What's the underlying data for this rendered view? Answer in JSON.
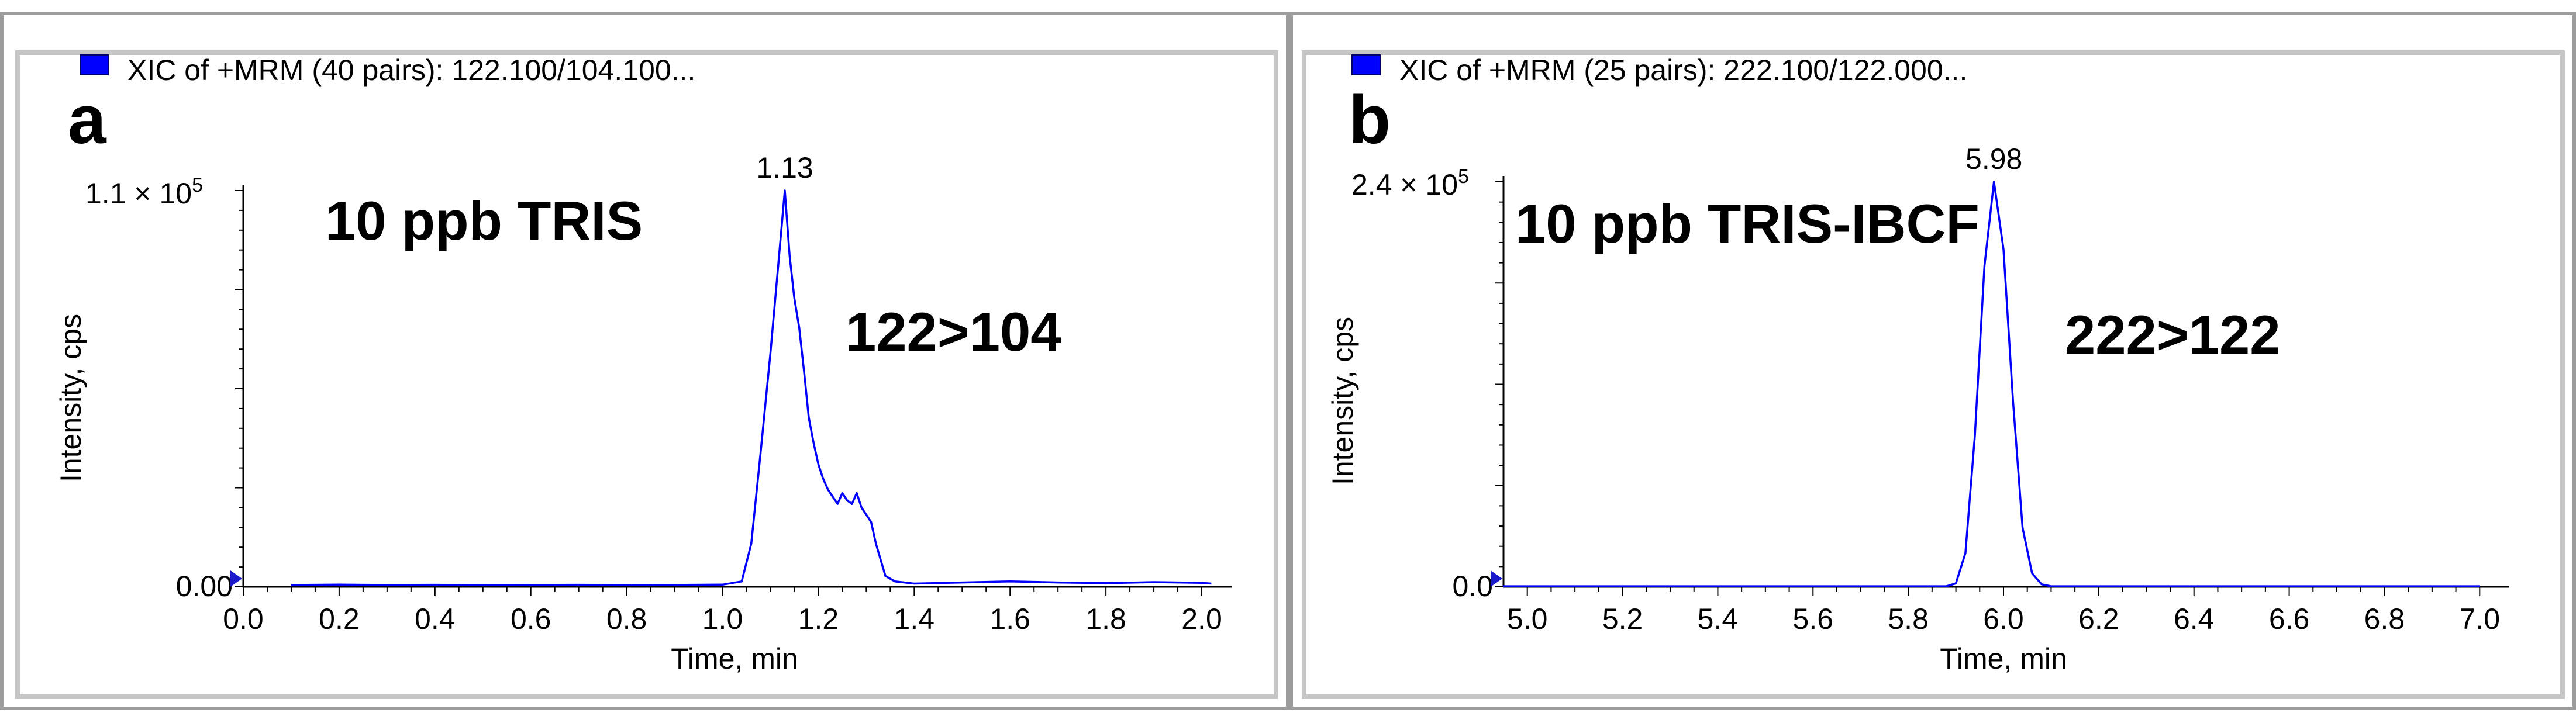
{
  "chart_data": [
    {
      "type": "line",
      "panel_letter": "a",
      "legend": "XIC of +MRM (40 pairs): 122.100/104.100...",
      "annotation_title": "10 ppb TRIS",
      "annotation_transition": "122>104",
      "peak_label": "1.13",
      "peak_time": 1.13,
      "xlabel": "Time, min",
      "ylabel": "Intensity, cps",
      "y_max_label": {
        "base": "1.1 × 10",
        "exp": "5"
      },
      "y_zero_label": "0.00",
      "xlim": [
        0.0,
        2.05
      ],
      "ylim": [
        0,
        110000
      ],
      "x_ticks": [
        "0.0",
        "0.2",
        "0.4",
        "0.6",
        "0.8",
        "1.0",
        "1.2",
        "1.4",
        "1.6",
        "1.8",
        "2.0"
      ],
      "color": "#0000ff",
      "series": [
        {
          "x": [
            0.1,
            0.2,
            0.3,
            0.4,
            0.5,
            0.6,
            0.7,
            0.8,
            0.9,
            1.0,
            1.04,
            1.06,
            1.08,
            1.1,
            1.12,
            1.13,
            1.14,
            1.15,
            1.16,
            1.17,
            1.18,
            1.19,
            1.2,
            1.21,
            1.22,
            1.23,
            1.24,
            1.25,
            1.26,
            1.27,
            1.28,
            1.29,
            1.3,
            1.31,
            1.32,
            1.34,
            1.36,
            1.4,
            1.5,
            1.6,
            1.7,
            1.8,
            1.9,
            2.0,
            2.02
          ],
          "y": [
            500,
            600,
            500,
            550,
            450,
            500,
            550,
            450,
            500,
            600,
            1500,
            12000,
            38000,
            65000,
            95000,
            110000,
            92000,
            80000,
            72000,
            60000,
            47000,
            40000,
            34000,
            30000,
            27000,
            25000,
            23000,
            26000,
            24000,
            23000,
            26000,
            22000,
            20000,
            18000,
            12000,
            3000,
            1500,
            900,
            1200,
            1500,
            1200,
            1000,
            1300,
            1100,
            900
          ]
        }
      ]
    },
    {
      "type": "line",
      "panel_letter": "b",
      "legend": "XIC of +MRM (25 pairs): 222.100/122.000...",
      "annotation_title": "10 ppb TRIS-IBCF",
      "annotation_transition": "222>122",
      "peak_label": "5.98",
      "peak_time": 5.98,
      "xlabel": "Time, min",
      "ylabel": "Intensity, cps",
      "y_max_label": {
        "base": "2.4 × 10",
        "exp": "5"
      },
      "y_zero_label": "0.0",
      "xlim": [
        4.95,
        7.05
      ],
      "ylim": [
        0,
        240000
      ],
      "x_ticks": [
        "5.0",
        "5.2",
        "5.4",
        "5.6",
        "5.8",
        "6.0",
        "6.2",
        "6.4",
        "6.6",
        "6.8",
        "7.0"
      ],
      "color": "#0000ff",
      "series": [
        {
          "x": [
            4.95,
            5.5,
            5.88,
            5.9,
            5.92,
            5.94,
            5.96,
            5.98,
            6.0,
            6.02,
            6.04,
            6.06,
            6.08,
            6.1,
            6.5,
            7.0
          ],
          "y": [
            300,
            300,
            300,
            2000,
            20000,
            90000,
            190000,
            240000,
            200000,
            110000,
            35000,
            8000,
            1500,
            300,
            300,
            300
          ]
        }
      ]
    }
  ]
}
